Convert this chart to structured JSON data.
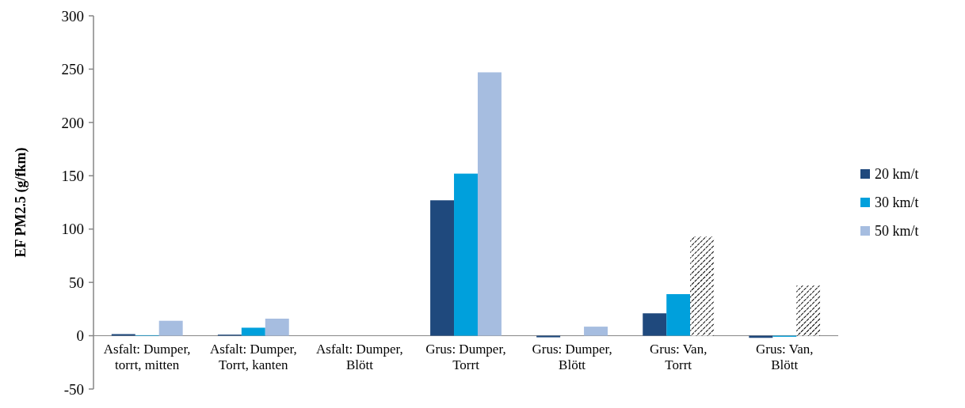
{
  "chart_data": {
    "type": "bar",
    "ylabel": "EF PM2.5 (g/fkm)",
    "categories": [
      "Asfalt: Dumper, torrt, mitten",
      "Asfalt: Dumper, Torrt, kanten",
      "Asfalt: Dumper, Blött",
      "Grus: Dumper, Torrt",
      "Grus: Dumper, Blött",
      "Grus: Van, Torrt",
      "Grus: Van, Blött"
    ],
    "series": [
      {
        "name": "20 km/t",
        "color": "#1f497d",
        "values": [
          1.5,
          1,
          0,
          127,
          -1.5,
          21,
          -2
        ]
      },
      {
        "name": "30 km/t",
        "color": "#00a0dc",
        "values": [
          0.5,
          7.5,
          0,
          152,
          0,
          39,
          -1
        ]
      },
      {
        "name": "50 km/t",
        "color": "#a6bde0",
        "colors": [
          "#a6bde0",
          "#a6bde0",
          "#a6bde0",
          "#a6bde0",
          "#a6bde0",
          "#000000",
          "#000000"
        ],
        "values": [
          14,
          16,
          0,
          247,
          8.5,
          93,
          47
        ]
      }
    ],
    "ylim": [
      -50,
      300
    ],
    "yticks": [
      -50,
      0,
      50,
      100,
      150,
      200,
      250,
      300
    ],
    "grid": false,
    "legend": "right"
  }
}
